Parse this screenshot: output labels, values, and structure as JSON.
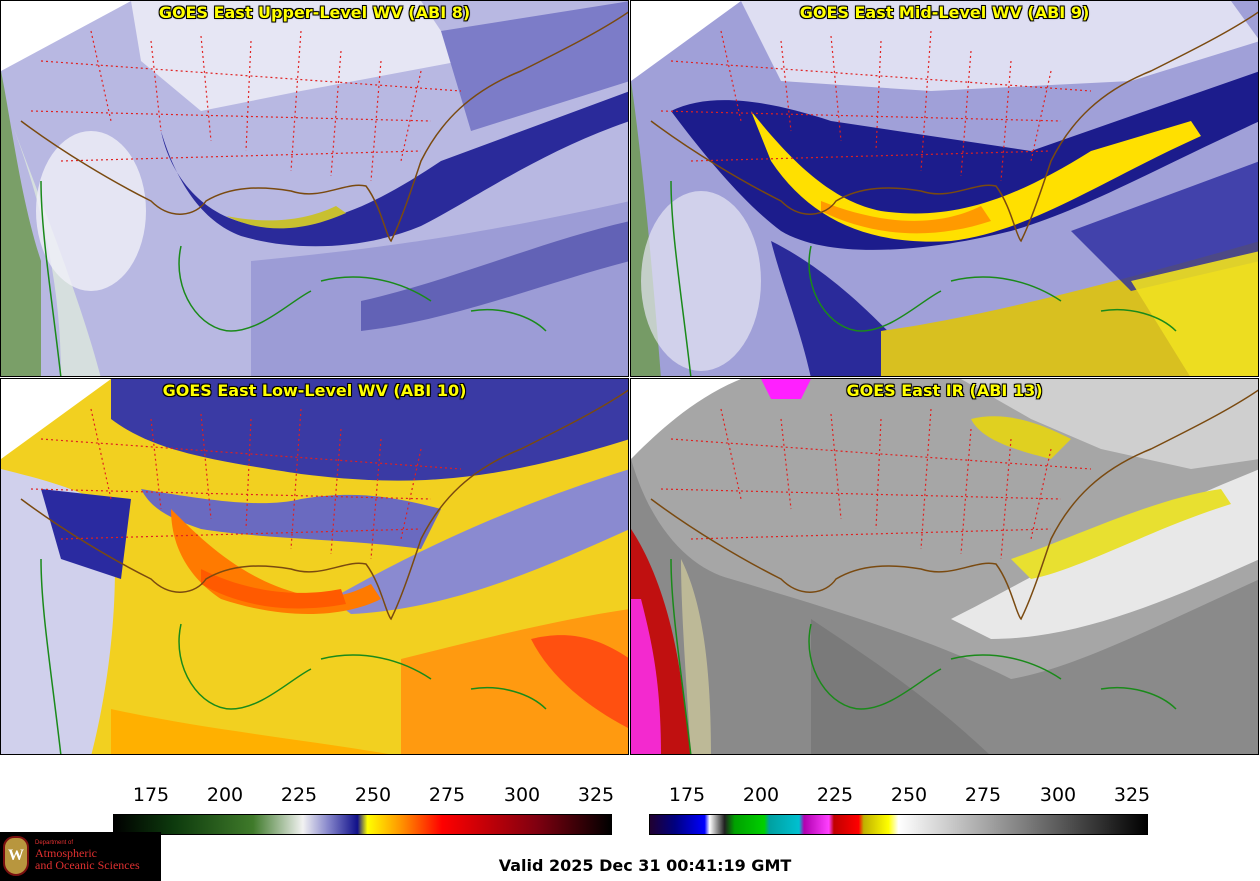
{
  "panels": [
    {
      "title": "GOES East Upper-Level WV (ABI 8)",
      "style": "upper"
    },
    {
      "title": "GOES East Mid-Level WV (ABI 9)",
      "style": "mid"
    },
    {
      "title": "GOES East Low-Level WV (ABI 10)",
      "style": "low"
    },
    {
      "title": "GOES East IR (ABI 13)",
      "style": "ir"
    }
  ],
  "colorbars": {
    "wv": {
      "ticks": [
        "175",
        "200",
        "225",
        "250",
        "275",
        "300",
        "325"
      ]
    },
    "ir": {
      "ticks": [
        "175",
        "200",
        "225",
        "250",
        "275",
        "300",
        "325"
      ]
    }
  },
  "valid_time": "Valid 2025 Dec 31 00:41:19 GMT",
  "logo": {
    "seal_letter": "W",
    "line1": "Department of",
    "line2": "Atmospheric",
    "line3": "and Oceanic Sciences"
  },
  "colors": {
    "state_borders": "#e02020",
    "coastline": "#1a8a1a",
    "us_coast": "#7a4a10",
    "title_text": "#ffff00"
  }
}
